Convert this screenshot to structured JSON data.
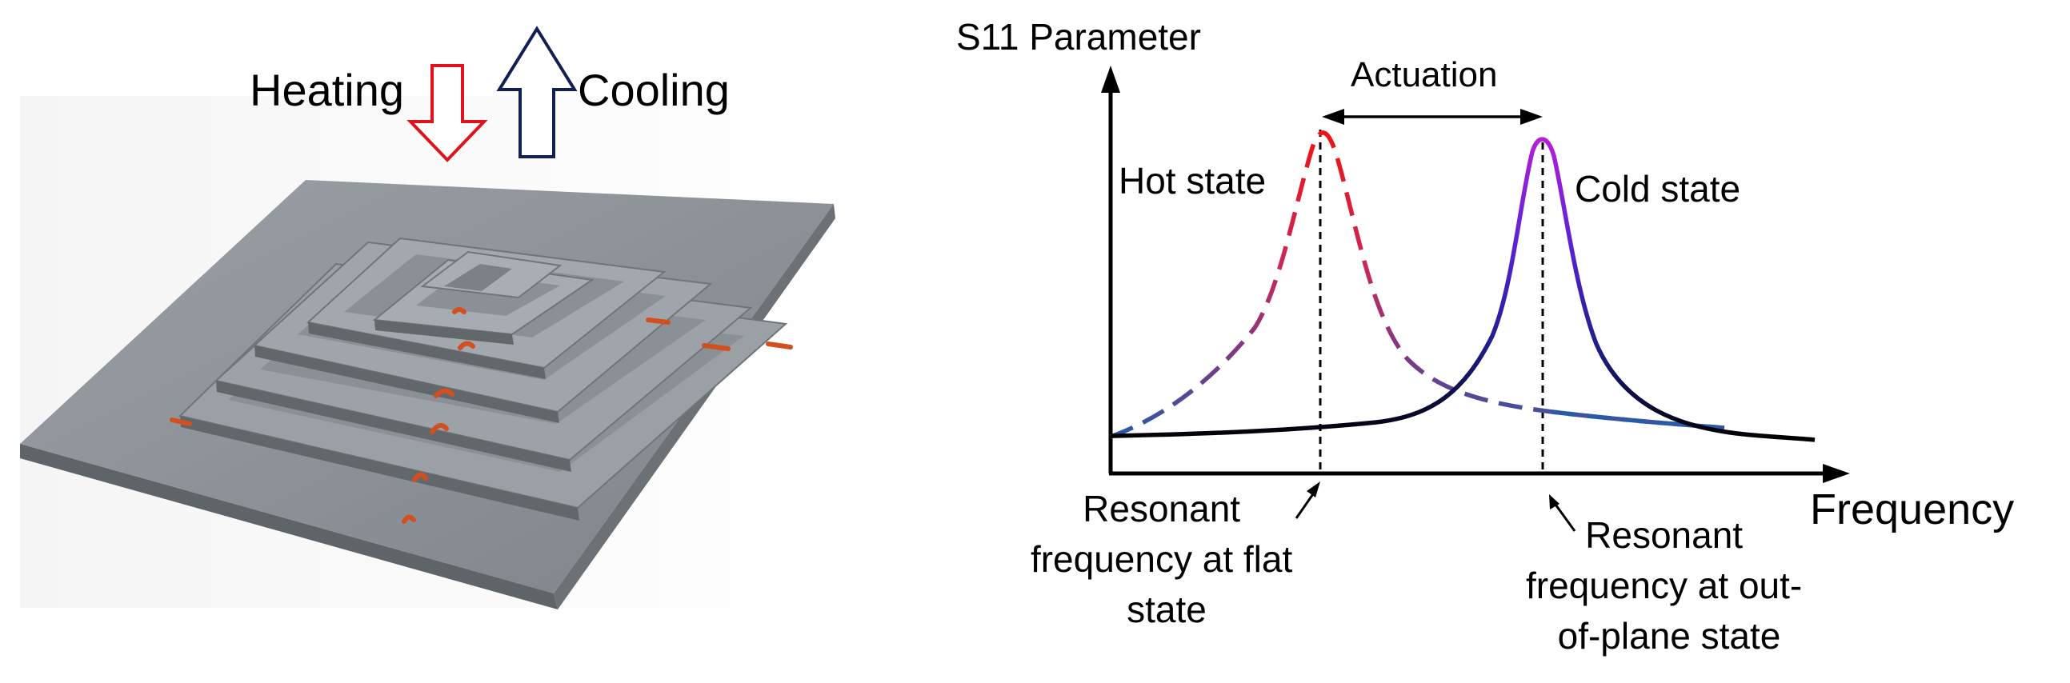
{
  "left_panel": {
    "heating_label": "Heating",
    "cooling_label": "Cooling",
    "colors": {
      "heating_arrow": "#e0121b",
      "cooling_arrow": "#111f52",
      "plate": "#8b9096",
      "heater_trace": "#d2501e"
    }
  },
  "right_panel": {
    "y_axis_label": "S11 Parameter",
    "x_axis_label": "Frequency",
    "actuation_label": "Actuation",
    "hot_state_label": "Hot state",
    "cold_state_label": "Cold state",
    "flat_resonance_label": [
      "Resonant",
      "frequency at flat",
      "state"
    ],
    "out_of_plane_resonance_label": [
      "Resonant",
      "frequency at out-",
      "of-plane state"
    ],
    "colors": {
      "hot_peak": "#f01414",
      "hot_tail": "#2a5aa6",
      "cold_peak": "#9b1fd8",
      "cold_body": "#3b2bd0",
      "cold_tail": "#000000"
    }
  }
}
